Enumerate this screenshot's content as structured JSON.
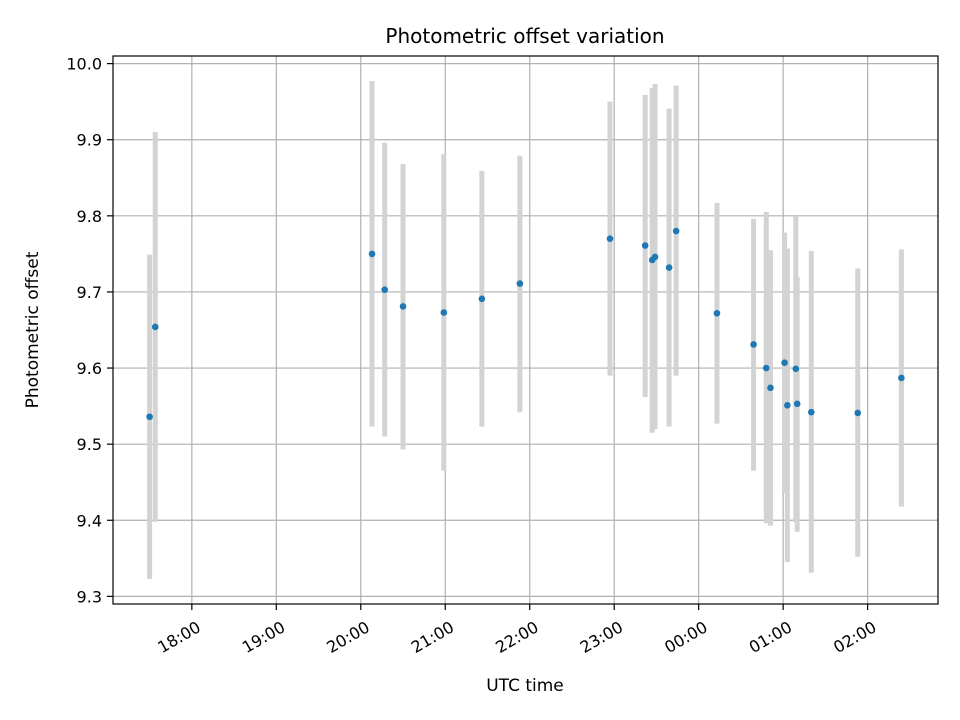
{
  "chart_data": {
    "type": "scatter",
    "title": "Photometric offset variation",
    "xlabel": "UTC time",
    "ylabel": "Photometric offset",
    "xlim": [
      "17:04",
      "02:50"
    ],
    "ylim": [
      9.29,
      10.01
    ],
    "grid": true,
    "x_ticks": [
      "18:00",
      "19:00",
      "20:00",
      "21:00",
      "22:00",
      "23:00",
      "00:00",
      "01:00",
      "02:00"
    ],
    "y_ticks": [
      9.3,
      9.4,
      9.5,
      9.6,
      9.7,
      9.8,
      9.9,
      10.0
    ],
    "y_tick_labels": [
      "9.3",
      "9.4",
      "9.5",
      "9.6",
      "9.7",
      "9.8",
      "9.9",
      "10.0"
    ],
    "colors": {
      "marker": "#1f77b4",
      "errorbar": "#d3d3d3",
      "grid": "#b0b0b0"
    },
    "series": [
      {
        "points": [
          {
            "x": "17:30",
            "y": 9.536,
            "ylow": 9.323,
            "yhigh": 9.749
          },
          {
            "x": "17:34",
            "y": 9.654,
            "ylow": 9.398,
            "yhigh": 9.91
          },
          {
            "x": "20:08",
            "y": 9.75,
            "ylow": 9.523,
            "yhigh": 9.977
          },
          {
            "x": "20:17",
            "y": 9.703,
            "ylow": 9.51,
            "yhigh": 9.896
          },
          {
            "x": "20:30",
            "y": 9.681,
            "ylow": 9.493,
            "yhigh": 9.868
          },
          {
            "x": "20:59",
            "y": 9.673,
            "ylow": 9.465,
            "yhigh": 9.881
          },
          {
            "x": "21:26",
            "y": 9.691,
            "ylow": 9.523,
            "yhigh": 9.859
          },
          {
            "x": "21:53",
            "y": 9.711,
            "ylow": 9.542,
            "yhigh": 9.879
          },
          {
            "x": "22:57",
            "y": 9.77,
            "ylow": 9.59,
            "yhigh": 9.95
          },
          {
            "x": "23:22",
            "y": 9.761,
            "ylow": 9.562,
            "yhigh": 9.959
          },
          {
            "x": "23:27",
            "y": 9.742,
            "ylow": 9.515,
            "yhigh": 9.968
          },
          {
            "x": "23:29",
            "y": 9.746,
            "ylow": 9.52,
            "yhigh": 9.973
          },
          {
            "x": "23:39",
            "y": 9.732,
            "ylow": 9.523,
            "yhigh": 9.941
          },
          {
            "x": "23:44",
            "y": 9.78,
            "ylow": 9.59,
            "yhigh": 9.971
          },
          {
            "x": "00:13",
            "y": 9.672,
            "ylow": 9.527,
            "yhigh": 9.817
          },
          {
            "x": "00:39",
            "y": 9.631,
            "ylow": 9.465,
            "yhigh": 9.796
          },
          {
            "x": "00:48",
            "y": 9.6,
            "ylow": 9.396,
            "yhigh": 9.805
          },
          {
            "x": "00:51",
            "y": 9.574,
            "ylow": 9.393,
            "yhigh": 9.755
          },
          {
            "x": "01:01",
            "y": 9.607,
            "ylow": 9.436,
            "yhigh": 9.778
          },
          {
            "x": "01:03",
            "y": 9.551,
            "ylow": 9.345,
            "yhigh": 9.757
          },
          {
            "x": "01:09",
            "y": 9.599,
            "ylow": 9.397,
            "yhigh": 9.8
          },
          {
            "x": "01:10",
            "y": 9.553,
            "ylow": 9.385,
            "yhigh": 9.72
          },
          {
            "x": "01:20",
            "y": 9.542,
            "ylow": 9.331,
            "yhigh": 9.754
          },
          {
            "x": "01:53",
            "y": 9.541,
            "ylow": 9.352,
            "yhigh": 9.731
          },
          {
            "x": "02:24",
            "y": 9.587,
            "ylow": 9.418,
            "yhigh": 9.756
          }
        ]
      }
    ]
  }
}
